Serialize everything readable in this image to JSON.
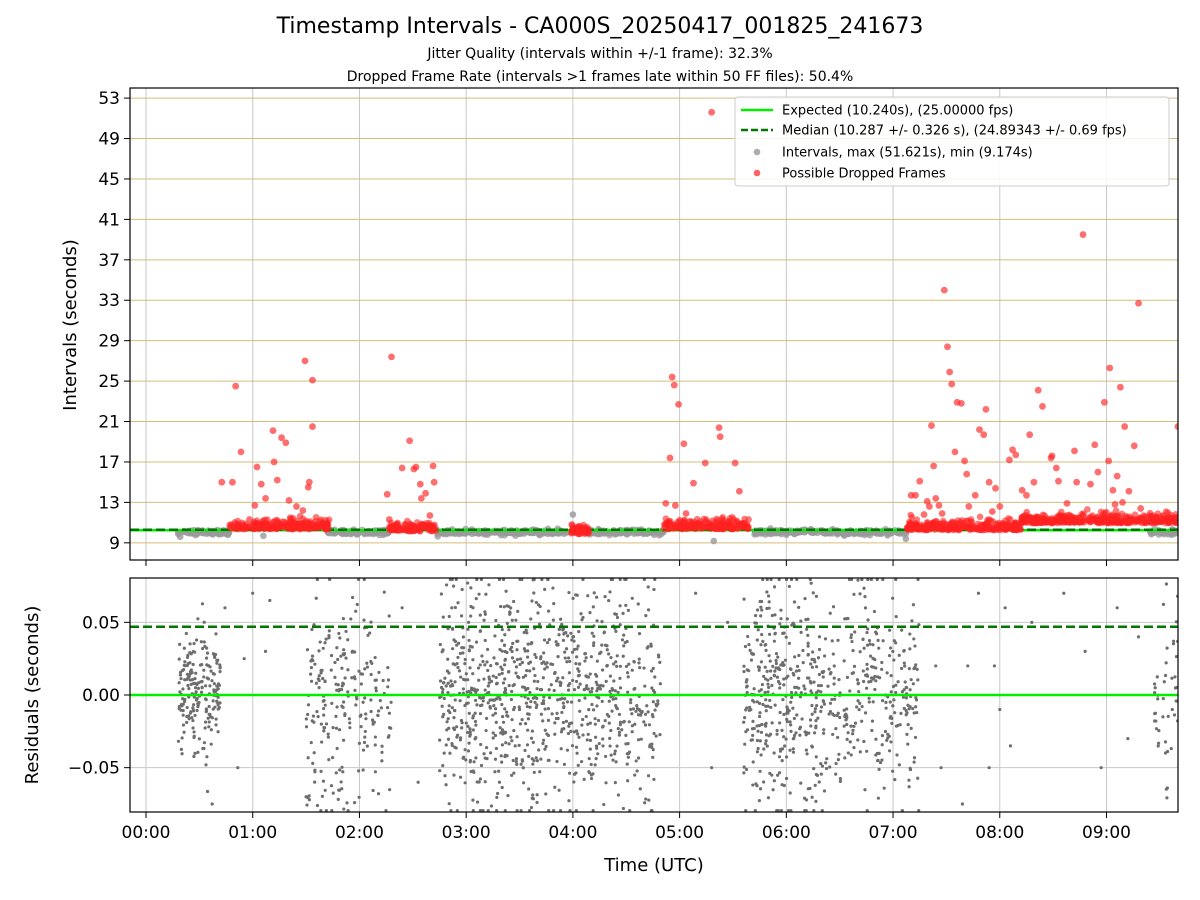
{
  "title": "Timestamp Intervals - CA000S_20250417_001825_241673",
  "subtitle1": "Jitter Quality (intervals within +/-1 frame): 32.3%",
  "subtitle2": "Dropped Frame Rate (intervals >1 frames late within 50 FF files): 50.4%",
  "colors": {
    "expected": "#00ee00",
    "median": "#007700",
    "intervals": "#999999",
    "dropped": "#ff2222",
    "residuals": "#6e6e6e",
    "hgrid_top": "#d4be7c",
    "grid": "#c8c8c8"
  },
  "chart_data": [
    {
      "type": "scatter",
      "ylabel": "Intervals (seconds)",
      "ylim": [
        7.3,
        54.0
      ],
      "xlim": [
        -0.15,
        9.67
      ],
      "yticks": [
        "9",
        "13",
        "17",
        "21",
        "25",
        "29",
        "33",
        "37",
        "41",
        "45",
        "49",
        "53"
      ],
      "grid": true,
      "legend_position": "top-right",
      "legend": [
        "Expected (10.240s), (25.00000 fps)",
        "Median (10.287 +/- 0.326 s), (24.89343 +/- 0.69 fps)",
        "Intervals, max (51.621s), min (9.174s)",
        "Possible Dropped Frames"
      ],
      "expected_line": 10.24,
      "median_line": 10.287,
      "series": [
        {
          "name": "Intervals, max (51.621s), min (9.174s)",
          "baseline_segments": [
            [
              0.3,
              0.78,
              10.05
            ],
            [
              1.7,
              2.28,
              10.05
            ],
            [
              2.72,
              3.95,
              10.05
            ],
            [
              4.1,
              4.85,
              10.05
            ],
            [
              5.7,
              7.13,
              10.05
            ],
            [
              9.4,
              9.67,
              10.05
            ]
          ],
          "points": [
            [
              4.0,
              11.8
            ],
            [
              5.32,
              9.17
            ],
            [
              7.12,
              9.4
            ],
            [
              0.32,
              9.6
            ],
            [
              1.1,
              9.7
            ],
            [
              3.2,
              9.8
            ],
            [
              6.0,
              9.8
            ]
          ]
        },
        {
          "name": "Possible Dropped Frames",
          "dense_bands": [
            [
              0.78,
              1.72,
              10.6
            ],
            [
              2.28,
              2.72,
              10.4
            ],
            [
              3.97,
              4.15,
              10.1
            ],
            [
              4.85,
              5.65,
              10.6
            ],
            [
              7.13,
              8.2,
              10.5
            ],
            [
              8.2,
              9.67,
              11.2
            ]
          ],
          "points": [
            [
              0.71,
              15.0
            ],
            [
              0.81,
              15.0
            ],
            [
              0.84,
              24.5
            ],
            [
              0.89,
              18.0
            ],
            [
              0.97,
              11.3
            ],
            [
              1.02,
              12.7
            ],
            [
              1.04,
              16.5
            ],
            [
              1.08,
              14.8
            ],
            [
              1.12,
              13.4
            ],
            [
              1.19,
              20.1
            ],
            [
              1.2,
              17.0
            ],
            [
              1.23,
              15.2
            ],
            [
              1.27,
              19.4
            ],
            [
              1.31,
              18.9
            ],
            [
              1.34,
              13.2
            ],
            [
              1.41,
              12.6
            ],
            [
              1.47,
              12.2
            ],
            [
              1.49,
              27.0
            ],
            [
              1.53,
              15.0
            ],
            [
              1.52,
              14.5
            ],
            [
              1.56,
              25.1
            ],
            [
              1.56,
              20.5
            ],
            [
              2.26,
              13.8
            ],
            [
              2.28,
              11.3
            ],
            [
              2.3,
              27.4
            ],
            [
              2.4,
              16.4
            ],
            [
              2.47,
              19.1
            ],
            [
              2.51,
              16.3
            ],
            [
              2.53,
              16.5
            ],
            [
              2.57,
              14.8
            ],
            [
              2.58,
              13.4
            ],
            [
              2.62,
              13.9
            ],
            [
              2.66,
              11.7
            ],
            [
              2.69,
              16.6
            ],
            [
              2.7,
              15.0
            ],
            [
              4.87,
              12.9
            ],
            [
              4.91,
              17.4
            ],
            [
              4.93,
              25.4
            ],
            [
              4.95,
              24.6
            ],
            [
              4.96,
              12.7
            ],
            [
              4.99,
              22.7
            ],
            [
              5.04,
              18.8
            ],
            [
              5.06,
              11.9
            ],
            [
              5.13,
              14.9
            ],
            [
              5.24,
              16.9
            ],
            [
              5.3,
              51.6
            ],
            [
              5.37,
              20.4
            ],
            [
              5.38,
              19.5
            ],
            [
              5.52,
              16.9
            ],
            [
              5.56,
              14.1
            ],
            [
              7.17,
              13.7
            ],
            [
              7.21,
              13.7
            ],
            [
              7.25,
              15.1
            ],
            [
              7.29,
              11.8
            ],
            [
              7.32,
              13.1
            ],
            [
              7.34,
              12.6
            ],
            [
              7.36,
              20.6
            ],
            [
              7.38,
              16.6
            ],
            [
              7.4,
              13.4
            ],
            [
              7.43,
              12.7
            ],
            [
              7.46,
              11.9
            ],
            [
              7.48,
              34.0
            ],
            [
              7.51,
              28.4
            ],
            [
              7.53,
              25.9
            ],
            [
              7.55,
              24.7
            ],
            [
              7.58,
              18.0
            ],
            [
              7.6,
              22.9
            ],
            [
              7.64,
              22.8
            ],
            [
              7.67,
              17.1
            ],
            [
              7.69,
              15.8
            ],
            [
              7.71,
              12.6
            ],
            [
              7.77,
              13.7
            ],
            [
              7.81,
              20.2
            ],
            [
              7.85,
              19.7
            ],
            [
              7.87,
              22.2
            ],
            [
              7.9,
              15.0
            ],
            [
              7.93,
              12.1
            ],
            [
              7.96,
              14.4
            ],
            [
              8.0,
              12.6
            ],
            [
              8.09,
              17.2
            ],
            [
              8.12,
              18.2
            ],
            [
              8.15,
              17.7
            ],
            [
              8.21,
              14.2
            ],
            [
              8.28,
              19.7
            ],
            [
              8.32,
              15.0
            ],
            [
              8.36,
              24.1
            ],
            [
              8.4,
              22.5
            ],
            [
              8.48,
              17.4
            ],
            [
              8.49,
              17.6
            ],
            [
              8.53,
              16.4
            ],
            [
              8.63,
              12.9
            ],
            [
              8.7,
              18.1
            ],
            [
              8.72,
              15.0
            ],
            [
              8.78,
              39.5
            ],
            [
              8.85,
              14.8
            ],
            [
              8.89,
              18.7
            ],
            [
              8.92,
              16.0
            ],
            [
              8.98,
              22.9
            ],
            [
              9.02,
              17.1
            ],
            [
              9.03,
              26.3
            ],
            [
              9.06,
              14.2
            ],
            [
              9.08,
              12.8
            ],
            [
              9.13,
              24.4
            ],
            [
              9.17,
              20.5
            ],
            [
              9.21,
              14.1
            ],
            [
              9.26,
              18.6
            ],
            [
              9.3,
              32.7
            ],
            [
              9.32,
              12.4
            ],
            [
              9.67,
              20.5
            ],
            [
              9.1,
              15.6
            ],
            [
              9.15,
              13.0
            ],
            [
              8.55,
              15.1
            ],
            [
              8.25,
              13.7
            ]
          ]
        }
      ]
    },
    {
      "type": "scatter",
      "xlabel": "Time (UTC)",
      "ylabel": "Residuals (seconds)",
      "ylim": [
        -0.0805,
        0.0805
      ],
      "xlim": [
        -0.15,
        9.67
      ],
      "yticks": [
        "−0.05",
        "0.00",
        "0.05"
      ],
      "xticks": [
        "00:00",
        "01:00",
        "02:00",
        "03:00",
        "04:00",
        "05:00",
        "06:00",
        "07:00",
        "08:00",
        "09:00"
      ],
      "grid": true,
      "expected_line": 0.0,
      "median_line": 0.047,
      "series": [
        {
          "name": "Residuals",
          "clusters": [
            [
              0.3,
              0.7,
              0.0,
              0.02,
              200
            ],
            [
              1.5,
              2.3,
              0.0,
              0.04,
              230
            ],
            [
              2.75,
              3.35,
              0.0,
              0.04,
              300
            ],
            [
              3.35,
              4.05,
              0.0,
              0.04,
              330
            ],
            [
              4.05,
              4.82,
              0.0,
              0.04,
              300
            ],
            [
              5.6,
              6.3,
              0.0,
              0.04,
              340
            ],
            [
              6.3,
              7.25,
              0.0,
              0.04,
              300
            ],
            [
              9.45,
              9.67,
              0.0,
              0.03,
              45
            ]
          ],
          "points": [
            [
              0.62,
              -0.075
            ],
            [
              0.74,
              0.06
            ],
            [
              0.86,
              -0.05
            ],
            [
              0.92,
              0.025
            ],
            [
              1.0,
              0.07
            ],
            [
              1.12,
              0.03
            ],
            [
              1.16,
              0.065
            ],
            [
              1.5,
              -0.07
            ],
            [
              2.4,
              0.06
            ],
            [
              2.55,
              -0.06
            ],
            [
              5.3,
              -0.05
            ],
            [
              5.45,
              0.05
            ],
            [
              5.15,
              0.07
            ],
            [
              7.4,
              0.02
            ],
            [
              7.45,
              -0.05
            ],
            [
              7.65,
              -0.075
            ],
            [
              7.7,
              0.02
            ],
            [
              7.8,
              0.07
            ],
            [
              7.9,
              -0.05
            ],
            [
              7.95,
              0.02
            ],
            [
              8.0,
              -0.01
            ],
            [
              8.05,
              0.06
            ],
            [
              8.1,
              -0.035
            ],
            [
              8.3,
              0.05
            ],
            [
              8.6,
              0.07
            ],
            [
              8.8,
              0.03
            ],
            [
              8.95,
              -0.05
            ],
            [
              9.1,
              0.06
            ],
            [
              9.2,
              -0.03
            ],
            [
              9.3,
              0.04
            ]
          ]
        }
      ]
    }
  ]
}
